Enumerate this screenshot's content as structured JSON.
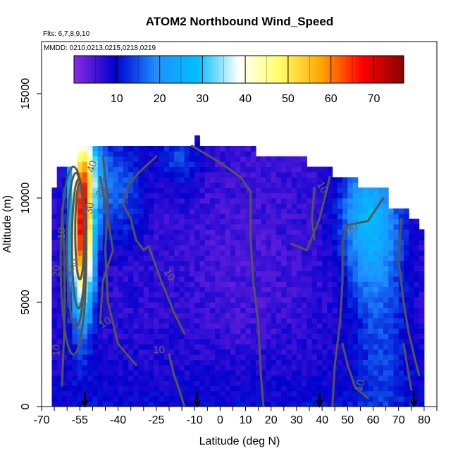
{
  "chart_data": {
    "type": "heatmap",
    "title": "ATOM2 Northbound Wind_Speed",
    "flights_label": "Flts: 6,7,8,9,10",
    "dates_label": "MMDD: 0210,0213,0215,0218,0219",
    "xlabel": "Latitude (deg N)",
    "ylabel": "Altitude (m)",
    "xlim": [
      -70,
      85
    ],
    "ylim": [
      0,
      17500
    ],
    "x_ticks": [
      -70,
      -55,
      -40,
      -25,
      -10,
      0,
      10,
      20,
      30,
      40,
      50,
      60,
      70,
      80
    ],
    "x_tick_labels": [
      "-70",
      "-55",
      "-40",
      "-25",
      "-10",
      "0",
      "10",
      "20",
      "30",
      "40",
      "50",
      "60",
      "70",
      "80"
    ],
    "y_ticks": [
      0,
      5000,
      10000,
      15000
    ],
    "y_tick_labels": [
      "0",
      "5000",
      "10000",
      "15000"
    ],
    "colorbar": {
      "range": [
        0,
        77
      ],
      "ticks": [
        10,
        20,
        30,
        40,
        50,
        60,
        70
      ],
      "tick_labels": [
        "10",
        "20",
        "30",
        "40",
        "50",
        "60",
        "70"
      ],
      "colors": [
        "#8a2be2",
        "#0000cd",
        "#1e90ff",
        "#00bfff",
        "#ffffff",
        "#ffff66",
        "#ffa500",
        "#ff0000",
        "#8b0000"
      ]
    },
    "contour_levels": [
      10,
      20,
      30,
      40,
      50
    ],
    "arrow_latitudes": [
      -53,
      -9,
      39,
      76
    ],
    "jet_core": {
      "latitude": -54,
      "altitude": 8500,
      "speed": 70
    },
    "grid": false,
    "legend": "colorbar-top-inside"
  }
}
